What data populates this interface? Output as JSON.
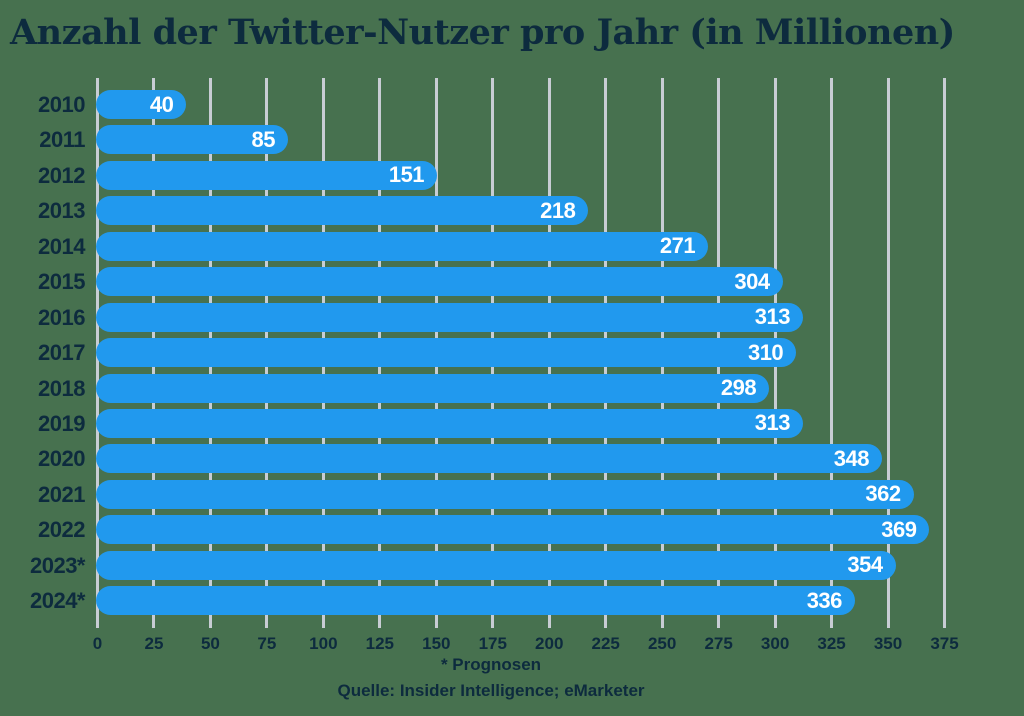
{
  "title": "Anzahl der Twitter-Nutzer pro Jahr (in Millionen)",
  "chart_data": {
    "type": "bar",
    "orientation": "horizontal",
    "title": "Anzahl der Twitter-Nutzer pro Jahr (in Millionen)",
    "categories": [
      "2010",
      "2011",
      "2012",
      "2013",
      "2014",
      "2015",
      "2016",
      "2017",
      "2018",
      "2019",
      "2020",
      "2021",
      "2022",
      "2023*",
      "2024*"
    ],
    "values": [
      40,
      85,
      151,
      218,
      271,
      304,
      313,
      310,
      298,
      313,
      348,
      362,
      369,
      354,
      336
    ],
    "xlabel": "",
    "ylabel": "",
    "xlim": [
      0,
      375
    ],
    "x_ticks": [
      0,
      25,
      50,
      75,
      100,
      125,
      150,
      175,
      200,
      225,
      250,
      275,
      300,
      325,
      350,
      375
    ],
    "grid": true,
    "legend": false,
    "value_labels_inside_bars": true
  },
  "footer": {
    "note": "* Prognosen",
    "source": "Quelle: Insider Intelligence; eMarketer"
  },
  "colors": {
    "background": "#47714F",
    "bar": "#2199EE",
    "text": "#0D2B3E",
    "value_label": "#FFFFFF",
    "gridline": "#C8CDD4"
  }
}
